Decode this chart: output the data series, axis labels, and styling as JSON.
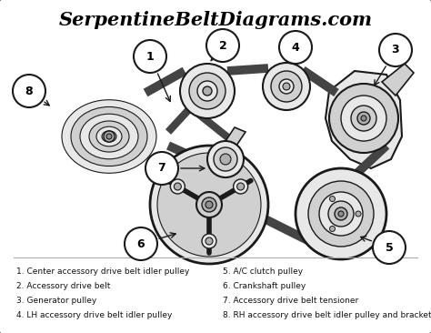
{
  "title": "SerpentineBeltDiagrams.com",
  "bg_color": "#ffffff",
  "border_color": "#333333",
  "label_color": "#111111",
  "legend_items_left": [
    "1. Center accessory drive belt idler pulley",
    "2. Accessory drive belt",
    "3. Generator pulley",
    "4. LH accessory drive belt idler pulley"
  ],
  "legend_items_right": [
    "5. A/C clutch pulley",
    "6. Crankshaft pulley",
    "7. Accessory drive belt tensioner",
    "8. RH accessory drive belt idler pulley and bracket"
  ],
  "legend_fontsize": 6.5,
  "title_fontsize": 15
}
